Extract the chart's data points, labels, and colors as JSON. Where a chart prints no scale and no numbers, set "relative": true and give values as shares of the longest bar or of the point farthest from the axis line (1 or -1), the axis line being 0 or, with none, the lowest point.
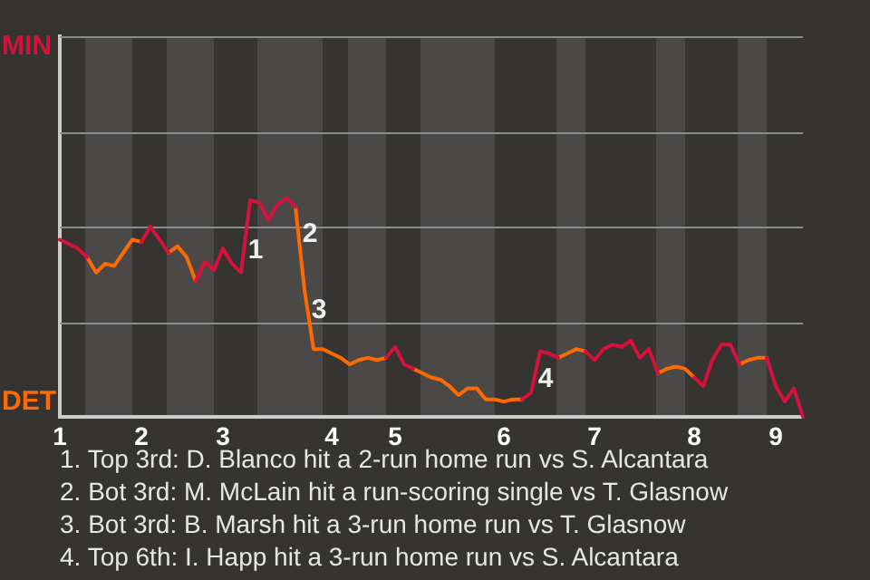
{
  "chart_data": {
    "type": "line",
    "relative": true,
    "categories": [
      "1",
      null,
      null,
      null,
      null,
      null,
      null,
      null,
      null,
      "2",
      null,
      null,
      null,
      null,
      null,
      null,
      null,
      null,
      "3",
      null,
      null,
      null,
      null,
      null,
      null,
      null,
      null,
      null,
      null,
      null,
      "4",
      null,
      null,
      null,
      null,
      null,
      null,
      "5",
      null,
      null,
      null,
      null,
      null,
      null,
      null,
      null,
      null,
      null,
      null,
      "6",
      null,
      null,
      null,
      null,
      null,
      null,
      null,
      null,
      null,
      "7",
      null,
      null,
      null,
      null,
      null,
      null,
      null,
      null,
      null,
      null,
      "8",
      null,
      null,
      null,
      null,
      null,
      null,
      null,
      null,
      "9",
      null,
      null,
      null
    ],
    "series": [
      {
        "name": "MIN",
        "color": "#d4123c",
        "values": [
          0.81,
          0.79,
          0.77,
          0.73,
          null,
          null,
          null,
          null,
          null,
          0.8,
          0.87,
          0.81,
          0.75,
          null,
          null,
          0.62,
          0.71,
          0.67,
          0.77,
          0.7,
          0.66,
          0.99,
          0.98,
          0.9,
          0.97,
          1,
          0.96,
          null,
          null,
          null,
          null,
          null,
          null,
          null,
          null,
          null,
          0.27,
          0.32,
          0.24,
          0.22,
          null,
          null,
          null,
          null,
          null,
          null,
          null,
          null,
          null,
          null,
          null,
          0.08,
          0.11,
          0.3,
          0.29,
          0.27,
          null,
          null,
          0.3,
          0.26,
          0.31,
          0.33,
          0.32,
          0.35,
          0.27,
          0.31,
          0.2,
          null,
          null,
          null,
          0.18,
          0.14,
          0.26,
          0.33,
          0.33,
          0.24,
          null,
          null,
          0.27,
          0.14,
          0.07,
          0.13,
          0
        ]
      },
      {
        "name": "DET",
        "color": "#ff6a00",
        "values": [
          null,
          null,
          null,
          0.73,
          0.66,
          0.7,
          0.69,
          0.75,
          0.81,
          0.8,
          null,
          null,
          0.75,
          0.78,
          0.73,
          0.62,
          null,
          null,
          null,
          null,
          null,
          null,
          null,
          null,
          null,
          null,
          0.96,
          0.58,
          0.31,
          0.31,
          0.29,
          0.27,
          0.24,
          0.26,
          0.27,
          0.26,
          0.27,
          null,
          null,
          0.22,
          0.2,
          0.18,
          0.17,
          0.14,
          0.1,
          0.13,
          0.13,
          0.08,
          0.08,
          0.07,
          0.08,
          0.08,
          null,
          null,
          null,
          0.27,
          0.29,
          0.31,
          0.3,
          null,
          null,
          null,
          null,
          null,
          null,
          null,
          0.2,
          0.22,
          0.23,
          0.22,
          0.18,
          null,
          null,
          null,
          null,
          0.24,
          0.26,
          0.27,
          0.27,
          null,
          null,
          null,
          null
        ]
      }
    ],
    "legend": false,
    "marker": "none",
    "line_style": "solid",
    "ref_lines": [
      {
        "axis": "y",
        "value": 0.43,
        "color": "#8a8a8a"
      },
      {
        "axis": "y",
        "value": 0.87,
        "color": "#8a8a8a"
      },
      {
        "axis": "y",
        "value": 1.3,
        "color": "#8a8a8a"
      },
      {
        "axis": "y",
        "value": 1.74,
        "color": "#8a8a8a"
      }
    ],
    "annotations": [
      "1",
      "2",
      "3",
      "4",
      "1. Top 3rd: D. Blanco hit a 2-run home run vs S. Alcantara",
      "2. Bot 3rd: M. McLain hit a run-scoring single vs T. Glasnow",
      "3. Bot 3rd: B. Marsh hit a 3-run home run vs T. Glasnow",
      "4. Top 6th: I. Happ hit a 3-run home run vs S. Alcantara"
    ]
  }
}
